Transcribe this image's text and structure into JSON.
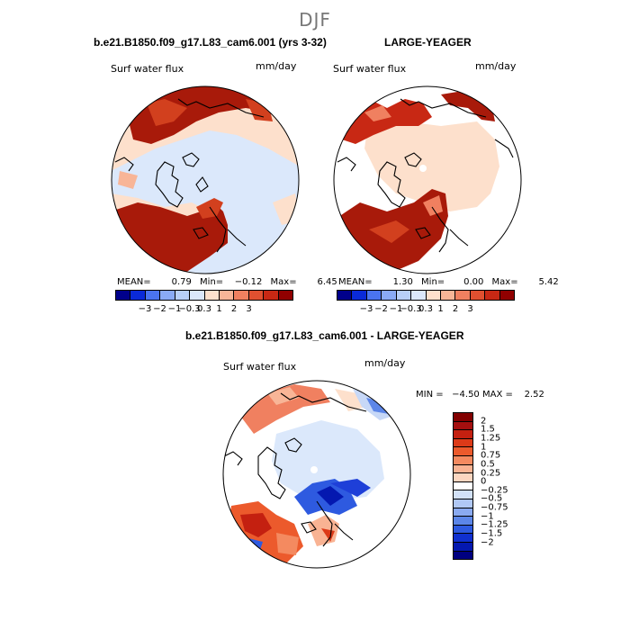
{
  "title": "DJF",
  "panels": {
    "left": {
      "case_title": "b.e21.B1850.f09_g17.L83_cam6.001 (yrs 3-32)",
      "variable": "Surf water flux",
      "units": "mm/day",
      "mean_label": "MEAN=",
      "mean": "0.79",
      "min_label": "Min=",
      "min": "−0.12",
      "max_label": "Max=",
      "max": "6.45"
    },
    "right": {
      "case_title": "LARGE-YEAGER",
      "variable": "Surf water flux",
      "units": "mm/day",
      "mean_label": "MEAN=",
      "mean": "1.30",
      "min_label": "Min=",
      "min": "0.00",
      "max_label": "Max=",
      "max": "5.42"
    },
    "diff": {
      "case_title": "b.e21.B1850.f09_g17.L83_cam6.001 - LARGE-YEAGER",
      "variable": "Surf water flux",
      "units": "mm/day",
      "minmax_text": "MIN =   −4.50 MAX =    2.52"
    }
  },
  "colorbar_horizontal": {
    "colors": [
      "#00008b",
      "#0a2ad8",
      "#4a74f0",
      "#8aaaf5",
      "#b8cff8",
      "#dbe8fb",
      "#fde0cc",
      "#f8b597",
      "#f08060",
      "#e05030",
      "#c82814",
      "#900000"
    ],
    "ticks": [
      "−3",
      "−2",
      "−1",
      "−0.3",
      "0.3",
      "1",
      "2",
      "3"
    ]
  },
  "colorbar_vertical": {
    "colors": [
      "#820000",
      "#a50f0f",
      "#c42010",
      "#dc3a18",
      "#ec5a2c",
      "#f48a60",
      "#f9b393",
      "#fcd6c0",
      "#ffffff",
      "#d2e1f8",
      "#b0c8f5",
      "#8aaaf0",
      "#5c86e8",
      "#2e5ae0",
      "#1030d0",
      "#0418b0",
      "#000080"
    ],
    "ticks": [
      "2",
      "1.5",
      "1.25",
      "1",
      "0.75",
      "0.5",
      "0.25",
      "0",
      "−0.25",
      "−0.5",
      "−0.75",
      "−1",
      "−1.25",
      "−1.5",
      "−2"
    ]
  },
  "map_colors": {
    "land": "#ffffff",
    "ocean_light_blue": "#dbe8fb",
    "ocean_light_peach": "#fde0cc",
    "strong_red": "#a81a0a",
    "mid_red": "#d2401e",
    "orange": "#f08060",
    "diff_blue": "#1e3fd8",
    "diff_light_blue": "#c7d8f7"
  }
}
